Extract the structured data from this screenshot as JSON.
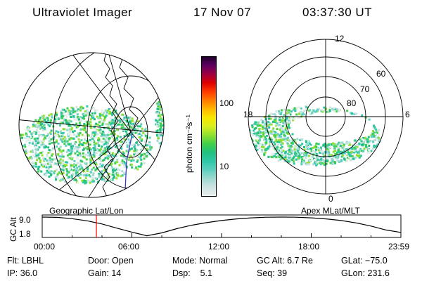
{
  "header": {
    "title": "Ultraviolet Imager",
    "date": "17 Nov 07",
    "time": "03:37:30 UT"
  },
  "left_map": {
    "label": "Geographic Lat/Lon"
  },
  "right_map": {
    "label": "Apex MLat/MLT",
    "mlt_labels": [
      "12",
      "18",
      "6",
      "0"
    ],
    "lat_labels": [
      "60",
      "70",
      "80"
    ]
  },
  "colorbar": {
    "unit_label": "photon cm⁻²s⁻¹",
    "ticks": [
      "100",
      "10"
    ],
    "colors": [
      "#e8eeee",
      "#cfe3e3",
      "#9fd9d0",
      "#5fcfc0",
      "#2fc6a8",
      "#20c080",
      "#3fd048",
      "#8fe030",
      "#d8ee20",
      "#f8e800",
      "#ffb800",
      "#ff7a00",
      "#ff3a00",
      "#e00000",
      "#a00040",
      "#600060",
      "#200030"
    ]
  },
  "altitude_plot": {
    "ylabel": "GC Alt",
    "ytick_top": "9.0",
    "ytick_bottom": "1.8",
    "xticks": [
      "00:00",
      "06:00",
      "12:00",
      "18:00",
      "23:59"
    ],
    "cursor_color": "#ff0000",
    "series": [
      {
        "t": 0,
        "alt": 9.0
      },
      {
        "t": 1,
        "alt": 8.9
      },
      {
        "t": 2,
        "alt": 8.4
      },
      {
        "t": 3,
        "alt": 7.6
      },
      {
        "t": 4,
        "alt": 6.4
      },
      {
        "t": 5,
        "alt": 4.8
      },
      {
        "t": 6,
        "alt": 3.3
      },
      {
        "t": 7,
        "alt": 1.9
      },
      {
        "t": 8,
        "alt": 3.0
      },
      {
        "t": 9,
        "alt": 4.6
      },
      {
        "t": 10,
        "alt": 5.9
      },
      {
        "t": 11,
        "alt": 6.9
      },
      {
        "t": 12,
        "alt": 7.7
      },
      {
        "t": 13,
        "alt": 8.3
      },
      {
        "t": 14,
        "alt": 8.7
      },
      {
        "t": 15,
        "alt": 8.95
      },
      {
        "t": 16,
        "alt": 9.0
      },
      {
        "t": 17,
        "alt": 8.95
      },
      {
        "t": 18,
        "alt": 8.7
      },
      {
        "t": 19,
        "alt": 8.3
      },
      {
        "t": 20,
        "alt": 7.7
      },
      {
        "t": 21,
        "alt": 6.8
      },
      {
        "t": 22,
        "alt": 5.6
      },
      {
        "t": 23,
        "alt": 4.1
      },
      {
        "t": 23.98,
        "alt": 3.2
      }
    ],
    "cursor_time": 3.625
  },
  "info": {
    "flt": "Flt: LBHL",
    "door": "Door: Open",
    "mode": "Mode: Normal",
    "gc_alt": "GC Alt: 6.7 Re",
    "glat": "GLat: −75.0",
    "ip": "IP: 36.0",
    "gain": "Gain: 14",
    "dsp": "Dsp:    5.1",
    "seq": "Seq: 39",
    "glon": "GLon: 231.6"
  }
}
